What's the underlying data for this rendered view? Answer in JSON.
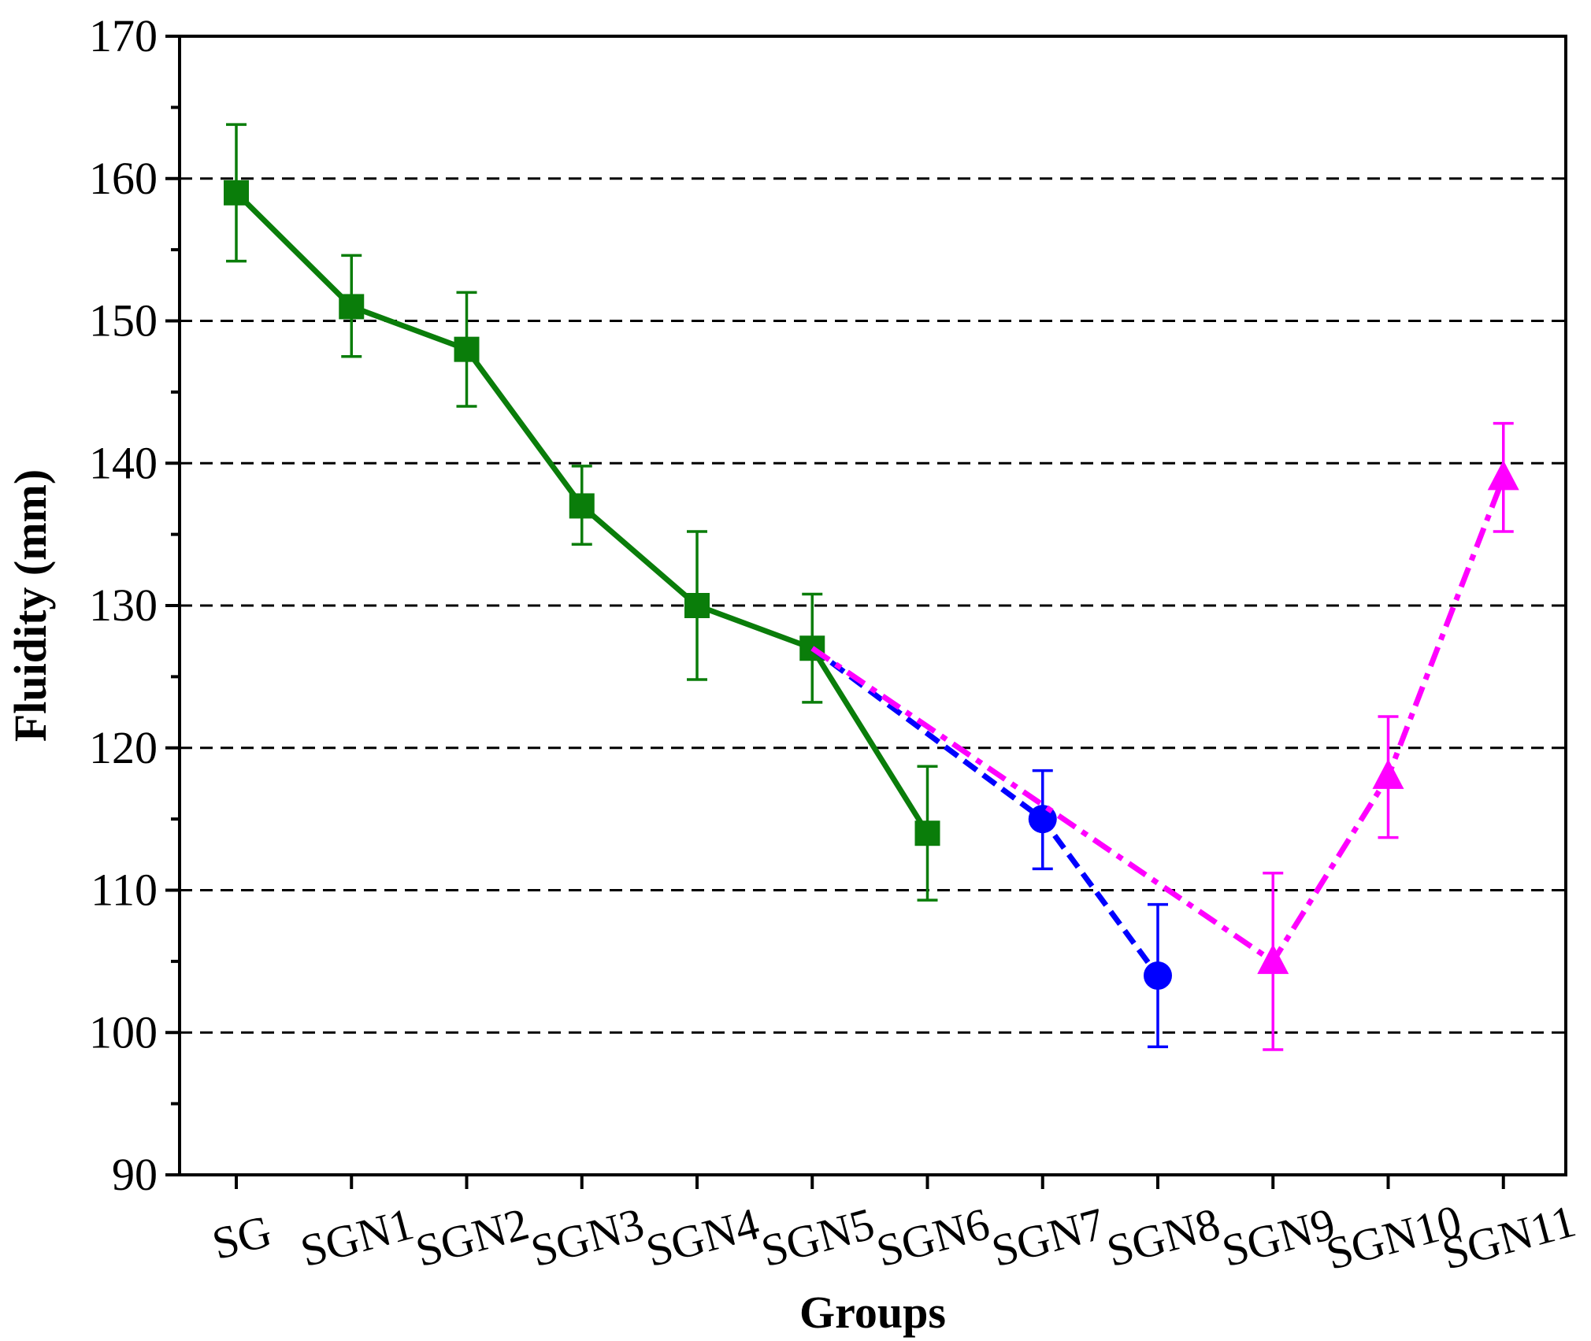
{
  "chart_data": {
    "type": "line",
    "title": "",
    "xlabel": "Groups",
    "ylabel": "Fluidity (mm)",
    "categories": [
      "SG",
      "SGN1",
      "SGN2",
      "SGN3",
      "SGN4",
      "SGN5",
      "SGN6",
      "SGN7",
      "SGN8",
      "SGN9",
      "SGN10",
      "SGN11"
    ],
    "ylim": [
      90,
      170
    ],
    "yticks": [
      90,
      100,
      110,
      120,
      130,
      140,
      150,
      160,
      170
    ],
    "grid": "horizontal dashed",
    "legend": "none",
    "series": [
      {
        "color": "#0a7d0a",
        "line_style": "solid",
        "marker": "square",
        "points": [
          {
            "category": "SG",
            "value": 159,
            "error_low": 154.2,
            "error_high": 163.8
          },
          {
            "category": "SGN1",
            "value": 151,
            "error_low": 147.5,
            "error_high": 154.6
          },
          {
            "category": "SGN2",
            "value": 148,
            "error_low": 144,
            "error_high": 152
          },
          {
            "category": "SGN3",
            "value": 137,
            "error_low": 134.3,
            "error_high": 139.8
          },
          {
            "category": "SGN4",
            "value": 130,
            "error_low": 124.8,
            "error_high": 135.2
          },
          {
            "category": "SGN5",
            "value": 127,
            "error_low": 123.2,
            "error_high": 130.8
          },
          {
            "category": "SGN6",
            "value": 114,
            "error_low": 109.3,
            "error_high": 118.7
          }
        ]
      },
      {
        "color": "#0000ff",
        "line_style": "dash",
        "marker": "circle",
        "points": [
          {
            "category": "SGN5",
            "value": 127
          },
          {
            "category": "SGN7",
            "value": 115,
            "error_low": 111.5,
            "error_high": 118.4
          },
          {
            "category": "SGN8",
            "value": 104,
            "error_low": 99,
            "error_high": 109
          }
        ]
      },
      {
        "color": "#ff00ff",
        "line_style": "dash-dot",
        "marker": "triangle",
        "points": [
          {
            "category": "SGN5",
            "value": 127
          },
          {
            "category": "SGN9",
            "value": 105,
            "error_low": 98.8,
            "error_high": 111.2
          },
          {
            "category": "SGN10",
            "value": 118,
            "error_low": 113.7,
            "error_high": 122.2
          },
          {
            "category": "SGN11",
            "value": 139,
            "error_low": 135.2,
            "error_high": 142.8
          }
        ]
      }
    ]
  }
}
